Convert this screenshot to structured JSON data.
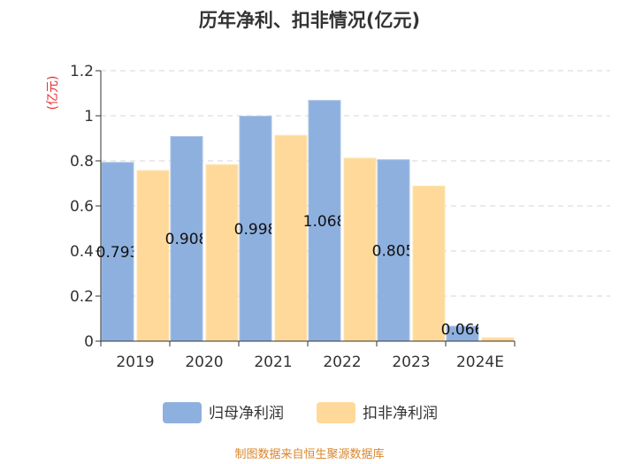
{
  "chart_data": {
    "type": "bar",
    "title": "历年净利、扣非情况(亿元)",
    "ylabel": "(亿元)",
    "xlabel": "",
    "categories": [
      "2019",
      "2020",
      "2021",
      "2022",
      "2023",
      "2024E"
    ],
    "ylim": [
      0,
      1.2
    ],
    "yticks": [
      "0",
      "0.2",
      "0.4",
      "0.6",
      "0.8",
      "1",
      "1.2"
    ],
    "ytick_values": [
      0,
      0.2,
      0.4,
      0.6,
      0.8,
      1.0,
      1.2
    ],
    "grid": true,
    "legend_position": "bottom",
    "series": [
      {
        "name": "归母净利润",
        "color": "#8eb0de",
        "edge": "#a9c3e6",
        "values": [
          0.793,
          0.908,
          0.998,
          1.068,
          0.805,
          0.066
        ],
        "labels": [
          "0.793",
          "0.908",
          "0.998",
          "1.068",
          "0.805",
          "0.066"
        ]
      },
      {
        "name": "扣非净利润",
        "color": "#ffd999",
        "edge": "#ffe4b3",
        "values": [
          0.757,
          0.783,
          0.913,
          0.812,
          0.688,
          0.015
        ]
      }
    ],
    "source": "制图数据来自恒生聚源数据库"
  }
}
